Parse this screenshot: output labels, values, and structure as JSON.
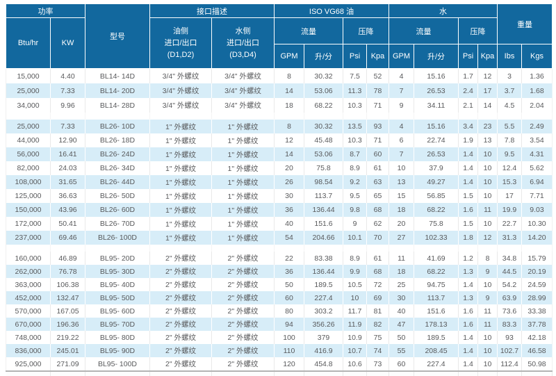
{
  "table": {
    "colors": {
      "header_bg": "#12689E",
      "stripe_bg": "#D7EDF8",
      "text_gray": "#58595B",
      "bottom_line": "#B3B3B3"
    },
    "header": {
      "power_group": "功率",
      "btu": "Btu/hr",
      "kw": "KW",
      "model": "型号",
      "interface_group": "接口描述",
      "oil_side_l1": "油侧",
      "oil_side_l2": "进口/出口",
      "oil_side_l3": "(D1,D2)",
      "water_side_l1": "水侧",
      "water_side_l2": "进口/出口",
      "water_side_l3": "(D3,D4)",
      "iso_group": "ISO VG68 油",
      "water_group": "水",
      "flow": "流量",
      "pressure_drop": "压降",
      "gpm": "GPM",
      "lpm": "升/分",
      "psi": "Psi",
      "kpa": "Kpa",
      "weight_group": "重量",
      "lbs": "Ibs",
      "kgs": "Kgs"
    },
    "columns": [
      "btu",
      "kw",
      "model",
      "oil-port",
      "water-port",
      "oil-gpm",
      "oil-lpm",
      "oil-psi",
      "oil-kpa",
      "water-gpm",
      "water-lpm",
      "water-psi",
      "water-kpa",
      "lbs",
      "kgs"
    ],
    "groups": [
      {
        "name": "BL14",
        "rows": [
          [
            "15,000",
            "4.40",
            "BL14- 14D",
            "3/4\" 外螺纹",
            "3/4\" 外螺纹",
            "8",
            "30.32",
            "7.5",
            "52",
            "4",
            "15.16",
            "1.7",
            "12",
            "3",
            "1.36"
          ],
          [
            "25,000",
            "7.33",
            "BL14- 20D",
            "3/4\" 外螺纹",
            "3/4\" 外螺纹",
            "14",
            "53.06",
            "11.3",
            "78",
            "7",
            "26.53",
            "2.4",
            "17",
            "3.7",
            "1.68"
          ],
          [
            "34,000",
            "9.96",
            "BL14- 28D",
            "3/4\" 外螺纹",
            "3/4\" 外螺纹",
            "18",
            "68.22",
            "10.3",
            "71",
            "9",
            "34.11",
            "2.1",
            "14",
            "4.5",
            "2.04"
          ]
        ]
      },
      {
        "name": "BL26",
        "rows": [
          [
            "25,000",
            "7.33",
            "BL26- 10D",
            "1\" 外螺纹",
            "1\" 外螺纹",
            "8",
            "30.32",
            "13.5",
            "93",
            "4",
            "15.16",
            "3.4",
            "23",
            "5.5",
            "2.49"
          ],
          [
            "44,000",
            "12.90",
            "BL26- 18D",
            "1\" 外螺纹",
            "1\" 外螺纹",
            "12",
            "45.48",
            "10.3",
            "71",
            "6",
            "22.74",
            "1.9",
            "13",
            "7.8",
            "3.54"
          ],
          [
            "56,000",
            "16.41",
            "BL26- 24D",
            "1\" 外螺纹",
            "1\" 外螺纹",
            "14",
            "53.06",
            "8.7",
            "60",
            "7",
            "26.53",
            "1.4",
            "10",
            "9.5",
            "4.31"
          ],
          [
            "82,000",
            "24.03",
            "BL26- 34D",
            "1\" 外螺纹",
            "1\" 外螺纹",
            "20",
            "75.8",
            "8.9",
            "61",
            "10",
            "37.9",
            "1.4",
            "10",
            "12.4",
            "5.62"
          ],
          [
            "108,000",
            "31.65",
            "BL26- 44D",
            "1\" 外螺纹",
            "1\" 外螺纹",
            "26",
            "98.54",
            "9.2",
            "63",
            "13",
            "49.27",
            "1.4",
            "10",
            "15.3",
            "6.94"
          ],
          [
            "125,000",
            "36.63",
            "BL26- 50D",
            "1\" 外螺纹",
            "1\" 外螺纹",
            "30",
            "113.7",
            "9.5",
            "65",
            "15",
            "56.85",
            "1.5",
            "10",
            "17",
            "7.71"
          ],
          [
            "150,000",
            "43.96",
            "BL26- 60D",
            "1\" 外螺纹",
            "1\" 外螺纹",
            "36",
            "136.44",
            "9.8",
            "68",
            "18",
            "68.22",
            "1.6",
            "11",
            "19.9",
            "9.03"
          ],
          [
            "172,000",
            "50.41",
            "BL26- 70D",
            "1\" 外螺纹",
            "1\" 外螺纹",
            "40",
            "151.6",
            "9",
            "62",
            "20",
            "75.8",
            "1.5",
            "10",
            "22.7",
            "10.30"
          ],
          [
            "237,000",
            "69.46",
            "BL26- 100D",
            "1\" 外螺纹",
            "1\" 外螺纹",
            "54",
            "204.66",
            "10.1",
            "70",
            "27",
            "102.33",
            "1.8",
            "12",
            "31.3",
            "14.20"
          ]
        ]
      },
      {
        "name": "BL95",
        "rows": [
          [
            "160,000",
            "46.89",
            "BL95- 20D",
            "2\" 外螺纹",
            "2\" 外螺纹",
            "22",
            "83.38",
            "8.9",
            "61",
            "11",
            "41.69",
            "1.2",
            "8",
            "34.8",
            "15.79"
          ],
          [
            "262,000",
            "76.78",
            "BL95- 30D",
            "2\" 外螺纹",
            "2\" 外螺纹",
            "36",
            "136.44",
            "9.9",
            "68",
            "18",
            "68.22",
            "1.3",
            "9",
            "44.5",
            "20.19"
          ],
          [
            "363,000",
            "106.38",
            "BL95- 40D",
            "2\" 外螺纹",
            "2\" 外螺纹",
            "50",
            "189.5",
            "10.5",
            "72",
            "25",
            "94.75",
            "1.4",
            "10",
            "54.2",
            "24.59"
          ],
          [
            "452,000",
            "132.47",
            "BL95- 50D",
            "2\" 外螺纹",
            "2\" 外螺纹",
            "60",
            "227.4",
            "10",
            "69",
            "30",
            "113.7",
            "1.3",
            "9",
            "63.9",
            "28.99"
          ],
          [
            "570,000",
            "167.05",
            "BL95- 60D",
            "2\" 外螺纹",
            "2\" 外螺纹",
            "80",
            "303.2",
            "11.7",
            "81",
            "40",
            "151.6",
            "1.6",
            "11",
            "73.6",
            "33.38"
          ],
          [
            "670,000",
            "196.36",
            "BL95- 70D",
            "2\" 外螺纹",
            "2\" 外螺纹",
            "94",
            "356.26",
            "11.9",
            "82",
            "47",
            "178.13",
            "1.6",
            "11",
            "83.3",
            "37.78"
          ],
          [
            "748,000",
            "219.22",
            "BL95- 80D",
            "2\" 外螺纹",
            "2\" 外螺纹",
            "100",
            "379",
            "10.9",
            "75",
            "50",
            "189.5",
            "1.4",
            "10",
            "93",
            "42.18"
          ],
          [
            "836,000",
            "245.01",
            "BL95- 90D",
            "2\" 外螺纹",
            "2\" 外螺纹",
            "110",
            "416.9",
            "10.7",
            "74",
            "55",
            "208.45",
            "1.4",
            "10",
            "102.7",
            "46.58"
          ],
          [
            "925,000",
            "271.09",
            "BL95- 100D",
            "2\" 外螺纹",
            "2\" 外螺纹",
            "120",
            "454.8",
            "10.6",
            "73",
            "60",
            "227.4",
            "1.4",
            "10",
            "112.4",
            "50.98"
          ]
        ]
      }
    ]
  }
}
